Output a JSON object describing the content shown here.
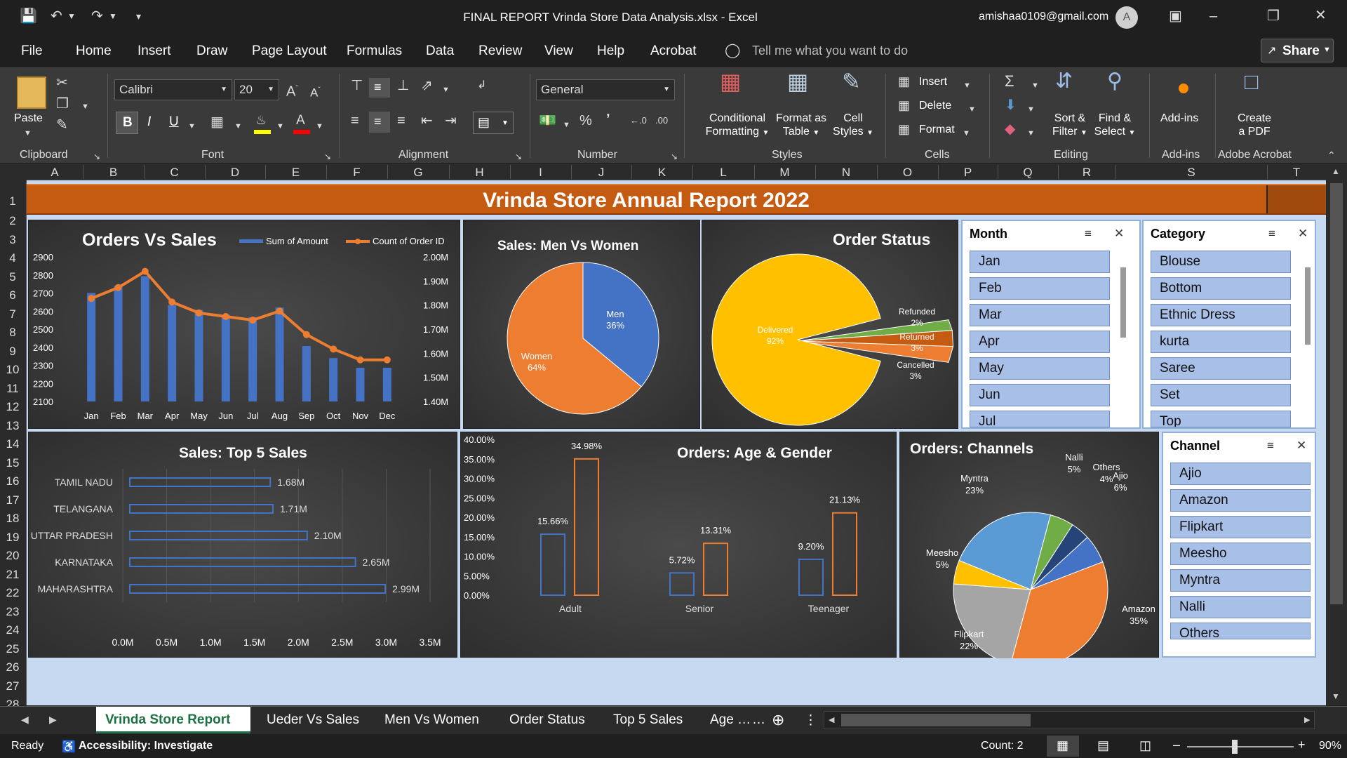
{
  "window": {
    "title": "FINAL REPORT Vrinda Store Data Analysis.xlsx  -  Excel",
    "user_email": "amishaa0109@gmail.com",
    "avatar_initial": "A",
    "share_label": "Share"
  },
  "menu": [
    "File",
    "Home",
    "Insert",
    "Draw",
    "Page Layout",
    "Formulas",
    "Data",
    "Review",
    "View",
    "Help",
    "Acrobat"
  ],
  "tell_me": "Tell me what you want to do",
  "ribbon": {
    "paste": "Paste",
    "font_name": "Calibri",
    "font_size": "20",
    "number_format": "General",
    "bold": "B",
    "italic": "I",
    "underline": "U",
    "conditional": [
      "Conditional",
      "Formatting"
    ],
    "format_table": [
      "Format as",
      "Table"
    ],
    "cell_styles": [
      "Cell",
      "Styles"
    ],
    "insert": "Insert",
    "delete": "Delete",
    "format": "Format",
    "sort": [
      "Sort &",
      "Filter"
    ],
    "find": [
      "Find &",
      "Select"
    ],
    "addins": "Add-ins",
    "create_pdf": [
      "Create",
      "a PDF"
    ],
    "groups": [
      "Clipboard",
      "Font",
      "Alignment",
      "Number",
      "Styles",
      "Cells",
      "Editing",
      "Add-ins",
      "Adobe Acrobat"
    ]
  },
  "columns": [
    "A",
    "B",
    "C",
    "D",
    "E",
    "F",
    "G",
    "H",
    "I",
    "J",
    "K",
    "L",
    "M",
    "N",
    "O",
    "P",
    "Q",
    "R",
    "S",
    "T"
  ],
  "rows": [
    "1",
    "2",
    "3",
    "4",
    "5",
    "6",
    "7",
    "8",
    "9",
    "10",
    "11",
    "12",
    "13",
    "14",
    "15",
    "16",
    "17",
    "18",
    "19",
    "20",
    "21",
    "22",
    "23",
    "24",
    "25",
    "26",
    "27",
    "28"
  ],
  "report_title": "Vrinda Store Annual Report 2022",
  "chart_data": [
    {
      "type": "bar",
      "title": "Orders Vs Sales",
      "categories": [
        "Jan",
        "Feb",
        "Mar",
        "Apr",
        "May",
        "Jun",
        "Jul",
        "Aug",
        "Sep",
        "Oct",
        "Nov",
        "Dec"
      ],
      "series": [
        {
          "name": "Sum of Amount",
          "axis": "secondary",
          "values": [
            1.85,
            1.88,
            1.92,
            1.8,
            1.78,
            1.76,
            1.75,
            1.79,
            1.63,
            1.58,
            1.54,
            1.54
          ]
        },
        {
          "name": "Count of Order ID",
          "axis": "primary",
          "type": "line",
          "values": [
            2670,
            2730,
            2820,
            2650,
            2590,
            2570,
            2550,
            2600,
            2470,
            2390,
            2330,
            2330
          ]
        }
      ],
      "y_ticks": [
        "2900",
        "2800",
        "2700",
        "2600",
        "2500",
        "2400",
        "2300",
        "2200",
        "2100"
      ],
      "ylim": [
        2100,
        2900
      ],
      "y2_ticks": [
        "2.00M",
        "1.90M",
        "1.80M",
        "1.70M",
        "1.60M",
        "1.50M",
        "1.40M"
      ],
      "y2lim": [
        1.4,
        2.0
      ],
      "legend": "top"
    },
    {
      "type": "pie",
      "title": "Sales: Men Vs Women",
      "slices": [
        {
          "label": "Men",
          "value": 36,
          "text": "36%",
          "color": "#4472c4"
        },
        {
          "label": "Women",
          "value": 64,
          "text": "64%",
          "color": "#ed7d31"
        }
      ]
    },
    {
      "type": "pie",
      "title": "Order Status",
      "slices": [
        {
          "label": "Delivered",
          "value": 92,
          "text": "92%",
          "color": "#ffc000"
        },
        {
          "label": "Refunded",
          "value": 2,
          "text": "2%",
          "color": "#70ad47"
        },
        {
          "label": "Returned",
          "value": 3,
          "text": "3%",
          "color": "#c55a11"
        },
        {
          "label": "Cancelled",
          "value": 3,
          "text": "3%",
          "color": "#ed7d31"
        }
      ]
    },
    {
      "type": "bar",
      "orientation": "horizontal",
      "title": "Sales: Top 5 Sales",
      "categories": [
        "TAMIL NADU",
        "TELANGANA",
        "UTTAR PRADESH",
        "KARNATAKA",
        "MAHARASHTRA"
      ],
      "values": [
        1.68,
        1.71,
        2.1,
        2.65,
        2.99
      ],
      "data_labels": [
        "1.68M",
        "1.71M",
        "2.10M",
        "2.65M",
        "2.99M"
      ],
      "x_ticks": [
        "0.0M",
        "0.5M",
        "1.0M",
        "1.5M",
        "2.0M",
        "2.5M",
        "3.0M",
        "3.5M"
      ],
      "xlim": [
        0,
        3.5
      ]
    },
    {
      "type": "bar",
      "title": "Orders: Age & Gender",
      "categories": [
        "Adult",
        "Senior",
        "Teenager"
      ],
      "series": [
        {
          "color": "#4472c4",
          "values": [
            15.66,
            5.72,
            9.2
          ],
          "labels": [
            "15.66%",
            "5.72%",
            "9.20%"
          ]
        },
        {
          "color": "#ed7d31",
          "values": [
            34.98,
            13.31,
            21.13
          ],
          "labels": [
            "34.98%",
            "13.31%",
            "21.13%"
          ]
        }
      ],
      "y_ticks": [
        "40.00%",
        "35.00%",
        "30.00%",
        "25.00%",
        "20.00%",
        "15.00%",
        "10.00%",
        "5.00%",
        "0.00%"
      ],
      "ylim": [
        0,
        40
      ]
    },
    {
      "type": "pie",
      "title": "Orders: Channels",
      "slices": [
        {
          "label": "Amazon",
          "value": 35,
          "text": "35%",
          "color": "#ed7d31"
        },
        {
          "label": "Flipkart",
          "value": 22,
          "text": "22%",
          "color": "#a5a5a5"
        },
        {
          "label": "Meesho",
          "value": 5,
          "text": "5%",
          "color": "#ffc000"
        },
        {
          "label": "Myntra",
          "value": 23,
          "text": "23%",
          "color": "#5b9bd5"
        },
        {
          "label": "Nalli",
          "value": 5,
          "text": "5%",
          "color": "#70ad47"
        },
        {
          "label": "Others",
          "value": 4,
          "text": "4%",
          "color": "#264478"
        },
        {
          "label": "Ajio",
          "value": 6,
          "text": "6%",
          "color": "#4472c4"
        }
      ]
    }
  ],
  "slicers": {
    "month": {
      "title": "Month",
      "items": [
        "Jan",
        "Feb",
        "Mar",
        "Apr",
        "May",
        "Jun",
        "Jul"
      ]
    },
    "category": {
      "title": "Category",
      "items": [
        "Blouse",
        "Bottom",
        "Ethnic Dress",
        "kurta",
        "Saree",
        "Set",
        "Top"
      ]
    },
    "channel": {
      "title": "Channel",
      "items": [
        "Ajio",
        "Amazon",
        "Flipkart",
        "Meesho",
        "Myntra",
        "Nalli",
        "Others"
      ]
    }
  },
  "sheets": [
    "Vrinda Store Report",
    "Ueder Vs Sales",
    "Men Vs Women",
    "Order Status",
    "Top 5 Sales",
    "Age …"
  ],
  "status": {
    "ready": "Ready",
    "accessibility": "Accessibility: Investigate",
    "count": "Count: 2",
    "zoom": "90%"
  }
}
